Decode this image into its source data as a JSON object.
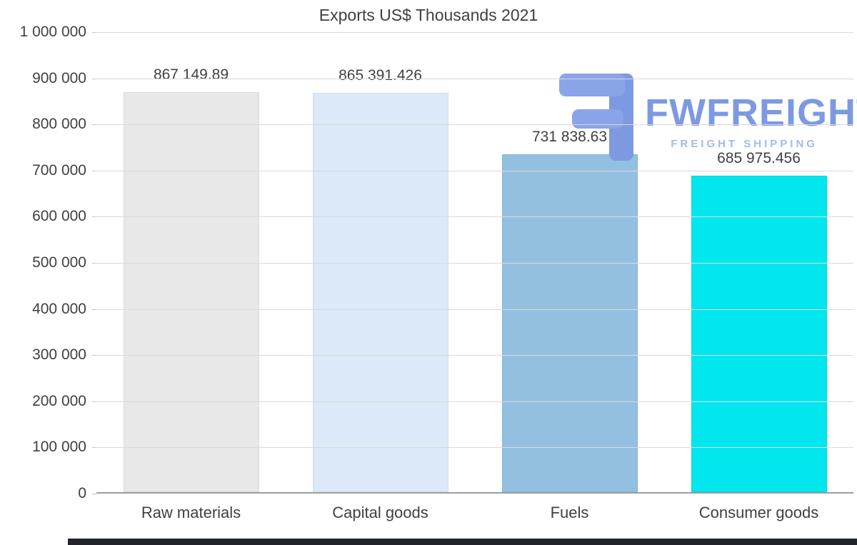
{
  "chart_data": {
    "type": "bar",
    "title": "Exports US$ Thousands 2021",
    "categories": [
      "Raw materials",
      "Capital goods",
      "Fuels",
      "Consumer goods"
    ],
    "values": [
      867149.89,
      865391.426,
      731838.63,
      685975.456
    ],
    "value_labels": [
      "867 149.89",
      "865 391.426",
      "731 838.63",
      "685 975.456"
    ],
    "bar_colors": [
      "#e8e8e8",
      "#dbe9f8",
      "#93c0e0",
      "#02e7ee"
    ],
    "bar_border_colors": [
      "#dadada",
      "#cfe0f3",
      "#85b4d8",
      "#00d5de"
    ],
    "xlabel": "",
    "ylabel": "",
    "ylim": [
      0,
      1000000
    ],
    "ytick_step": 100000,
    "ytick_labels": [
      "0",
      "100 000",
      "200 000",
      "300 000",
      "400 000",
      "500 000",
      "600 000",
      "700 000",
      "800 000",
      "900 000",
      "1 000 000"
    ],
    "grid": true,
    "legend": false
  },
  "watermark": {
    "brand": "FWFREIGHT",
    "tagline": "FREIGHT SHIPPING",
    "color": "#7c99e2"
  }
}
